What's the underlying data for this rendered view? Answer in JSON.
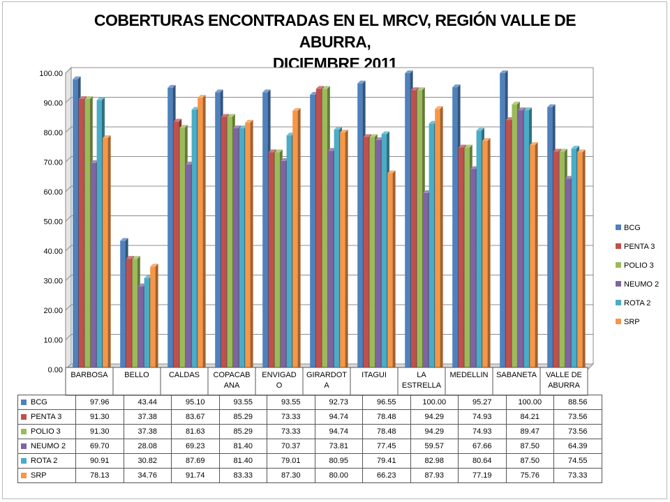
{
  "chart_data": {
    "type": "bar",
    "title_lines": [
      "COBERTURAS ENCONTRADAS EN EL MRCV, REGIÓN VALLE DE ABURRA,",
      "DICIEMBRE 2011"
    ],
    "categories": [
      "BARBOSA",
      "BELLO",
      "CALDAS",
      "COPACABANA",
      "ENVIGADO",
      "GIRARDOTA",
      "ITAGUI",
      "LA ESTRELLA",
      "MEDELLIN",
      "SABANETA",
      "VALLE DE ABURRA"
    ],
    "category_lines": [
      [
        "BARBOSA"
      ],
      [
        "BELLO"
      ],
      [
        "CALDAS"
      ],
      [
        "COPACAB",
        "ANA"
      ],
      [
        "ENVIGAD",
        "O"
      ],
      [
        "GIRARDOT",
        "A"
      ],
      [
        "ITAGUI"
      ],
      [
        "LA",
        "ESTRELLA"
      ],
      [
        "MEDELLIN"
      ],
      [
        "SABANETA"
      ],
      [
        "VALLE DE",
        "ABURRA"
      ]
    ],
    "y_ticks": [
      "0.00",
      "10.00",
      "20.00",
      "30.00",
      "40.00",
      "50.00",
      "60.00",
      "70.00",
      "80.00",
      "90.00",
      "100.00"
    ],
    "ylim": [
      0,
      100
    ],
    "grid": true,
    "legend_position": "right",
    "series": [
      {
        "name": "BCG",
        "color": "#4F81BD",
        "values": [
          97.96,
          43.44,
          95.1,
          93.55,
          93.55,
          92.73,
          96.55,
          100.0,
          95.27,
          100.0,
          88.56
        ]
      },
      {
        "name": "PENTA 3",
        "color": "#C0504D",
        "values": [
          91.3,
          37.38,
          83.67,
          85.29,
          73.33,
          94.74,
          78.48,
          94.29,
          74.93,
          84.21,
          73.56
        ]
      },
      {
        "name": "POLIO 3",
        "color": "#9BBB59",
        "values": [
          91.3,
          37.38,
          81.63,
          85.29,
          73.33,
          94.74,
          78.48,
          94.29,
          74.93,
          89.47,
          73.56
        ]
      },
      {
        "name": "NEUMO 2",
        "color": "#8064A2",
        "values": [
          69.7,
          28.08,
          69.23,
          81.4,
          70.37,
          73.81,
          77.45,
          59.57,
          67.66,
          87.5,
          64.39
        ]
      },
      {
        "name": "ROTA 2",
        "color": "#4BACC6",
        "values": [
          90.91,
          30.82,
          87.69,
          81.4,
          79.01,
          80.95,
          79.41,
          82.98,
          80.64,
          87.5,
          74.55
        ]
      },
      {
        "name": "SRP",
        "color": "#F79646",
        "values": [
          78.13,
          34.76,
          91.74,
          83.33,
          87.3,
          80.0,
          66.23,
          87.93,
          77.19,
          75.76,
          73.33
        ]
      }
    ],
    "table_values": [
      [
        "97.96",
        "43.44",
        "95.10",
        "93.55",
        "93.55",
        "92.73",
        "96.55",
        "100.00",
        "95.27",
        "100.00",
        "88.56"
      ],
      [
        "91.30",
        "37.38",
        "83.67",
        "85.29",
        "73.33",
        "94.74",
        "78.48",
        "94.29",
        "74.93",
        "84.21",
        "73.56"
      ],
      [
        "91.30",
        "37.38",
        "81.63",
        "85.29",
        "73.33",
        "94.74",
        "78.48",
        "94.29",
        "74.93",
        "89.47",
        "73.56"
      ],
      [
        "69.70",
        "28.08",
        "69.23",
        "81.40",
        "70.37",
        "73.81",
        "77.45",
        "59.57",
        "67.66",
        "87.50",
        "64.39"
      ],
      [
        "90.91",
        "30.82",
        "87.69",
        "81.40",
        "79.01",
        "80.95",
        "79.41",
        "82.98",
        "80.64",
        "87.50",
        "74.55"
      ],
      [
        "78.13",
        "34.76",
        "91.74",
        "83.33",
        "87.30",
        "80.00",
        "66.23",
        "87.93",
        "77.19",
        "75.76",
        "73.33"
      ]
    ]
  }
}
